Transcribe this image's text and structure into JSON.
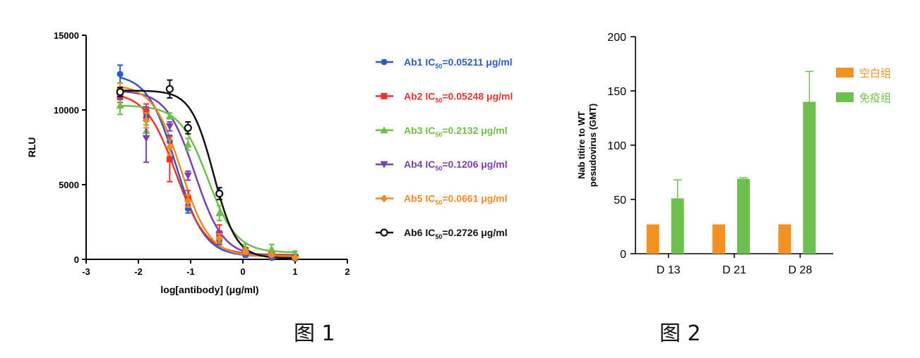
{
  "captions": {
    "fig1": "图 1",
    "fig2": "图 2"
  },
  "chart_data": [
    {
      "type": "scatter",
      "subtype": "dose-response curves with error bars",
      "xlabel": "log[antibody] (μg/ml)",
      "ylabel": "RLU",
      "xlim": [
        -3,
        2
      ],
      "ylim": [
        0,
        15000
      ],
      "xticks": [
        "-3",
        "-2",
        "-1",
        "0",
        "1",
        "2"
      ],
      "yticks": [
        "0",
        "5000",
        "10000",
        "15000"
      ],
      "legend_position": "right",
      "x": [
        -2.35,
        -1.85,
        -1.4,
        -1.05,
        -0.45,
        0.05,
        0.55,
        1.0
      ],
      "series": [
        {
          "name": "Ab1",
          "ic50_label": "IC",
          "ic50_sub": "50",
          "ic50_value": "=0.05211 μg/ml",
          "color": "#2a5cc4",
          "marker": "circle",
          "y": [
            12400,
            9500,
            7900,
            3400,
            1300,
            300,
            100,
            50
          ],
          "err": [
            600,
            700,
            400,
            300,
            300,
            150,
            100,
            80
          ]
        },
        {
          "name": "Ab2",
          "ic50_label": "IC",
          "ic50_sub": "50",
          "ic50_value": "=0.05248 μg/ml",
          "color": "#e8332e",
          "marker": "square",
          "y": [
            10900,
            9900,
            6700,
            4100,
            1700,
            600,
            300,
            150
          ],
          "err": [
            400,
            500,
            1500,
            500,
            600,
            200,
            150,
            100
          ]
        },
        {
          "name": "Ab3",
          "ic50_label": "IC",
          "ic50_sub": "50",
          "ic50_value": "=0.2132 μg/ml",
          "color": "#6cc04a",
          "marker": "triangle-up",
          "y": [
            10300,
            8600,
            9600,
            7700,
            3100,
            700,
            700,
            400
          ],
          "err": [
            600,
            400,
            200,
            400,
            500,
            300,
            300,
            150
          ]
        },
        {
          "name": "Ab4",
          "ic50_label": "IC",
          "ic50_sub": "50",
          "ic50_value": "=0.1206 μg/ml",
          "color": "#7a3fb0",
          "marker": "triangle-down",
          "y": [
            11100,
            8100,
            8900,
            5600,
            1600,
            400,
            200,
            100
          ],
          "err": [
            400,
            1600,
            300,
            300,
            300,
            150,
            100,
            80
          ]
        },
        {
          "name": "Ab5",
          "ic50_label": "IC",
          "ic50_sub": "50",
          "ic50_value": "=0.0661 μg/ml",
          "color": "#f08a24",
          "marker": "diamond",
          "y": [
            11400,
            9300,
            7500,
            3900,
            1400,
            500,
            300,
            100
          ],
          "err": [
            400,
            500,
            500,
            400,
            300,
            150,
            100,
            80
          ]
        },
        {
          "name": "Ab6",
          "ic50_label": "IC",
          "ic50_sub": "50",
          "ic50_value": "=0.2726 μg/ml",
          "color": "#111111",
          "marker": "open-circle",
          "y": [
            11200,
            null,
            11400,
            8800,
            4400,
            null,
            null,
            null
          ],
          "err": [
            300,
            null,
            600,
            400,
            400,
            null,
            null,
            null
          ]
        }
      ]
    },
    {
      "type": "bar",
      "categories": [
        "D 13",
        "D 21",
        "D 28"
      ],
      "ylabel_line1": "Nab titire to WT",
      "ylabel_line2": "pesudovirus (GMT)",
      "ylim": [
        0,
        200
      ],
      "yticks": [
        "0",
        "50",
        "100",
        "150",
        "200"
      ],
      "legend_position": "right",
      "series": [
        {
          "name": "空白组",
          "color": "#f39223",
          "values": [
            27,
            27,
            27
          ],
          "err": [
            0,
            0,
            0
          ]
        },
        {
          "name": "免疫组",
          "color": "#6ec04e",
          "values": [
            51,
            69,
            140
          ],
          "err": [
            17,
            1,
            28
          ]
        }
      ]
    }
  ]
}
